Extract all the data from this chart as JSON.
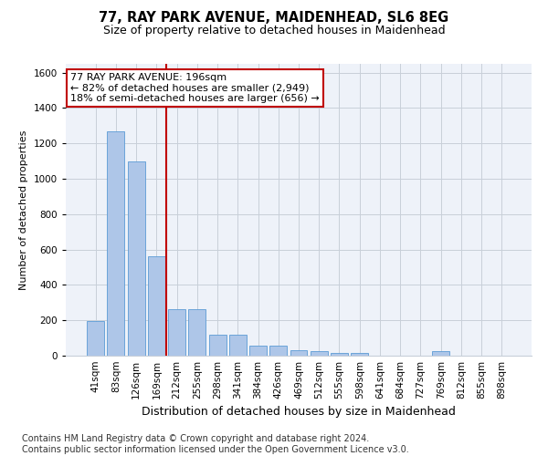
{
  "title": "77, RAY PARK AVENUE, MAIDENHEAD, SL6 8EG",
  "subtitle": "Size of property relative to detached houses in Maidenhead",
  "xlabel": "Distribution of detached houses by size in Maidenhead",
  "ylabel": "Number of detached properties",
  "categories": [
    "41sqm",
    "83sqm",
    "126sqm",
    "169sqm",
    "212sqm",
    "255sqm",
    "298sqm",
    "341sqm",
    "384sqm",
    "426sqm",
    "469sqm",
    "512sqm",
    "555sqm",
    "598sqm",
    "641sqm",
    "684sqm",
    "727sqm",
    "769sqm",
    "812sqm",
    "855sqm",
    "898sqm"
  ],
  "values": [
    197,
    1270,
    1100,
    560,
    265,
    265,
    120,
    120,
    55,
    55,
    30,
    25,
    15,
    15,
    0,
    0,
    0,
    25,
    0,
    0,
    0
  ],
  "bar_color": "#aec6e8",
  "bar_edge_color": "#5b9bd5",
  "vline_color": "#c00000",
  "annotation_line1": "77 RAY PARK AVENUE: 196sqm",
  "annotation_line2": "← 82% of detached houses are smaller (2,949)",
  "annotation_line3": "18% of semi-detached houses are larger (656) →",
  "annotation_box_color": "#ffffff",
  "annotation_box_edge": "#c00000",
  "ylim": [
    0,
    1650
  ],
  "yticks": [
    0,
    200,
    400,
    600,
    800,
    1000,
    1200,
    1400,
    1600
  ],
  "footer_line1": "Contains HM Land Registry data © Crown copyright and database right 2024.",
  "footer_line2": "Contains public sector information licensed under the Open Government Licence v3.0.",
  "bg_color": "#eef2f9",
  "grid_color": "#c8cfd9",
  "title_fontsize": 10.5,
  "subtitle_fontsize": 9,
  "ylabel_fontsize": 8,
  "xlabel_fontsize": 9,
  "tick_fontsize": 7.5,
  "footer_fontsize": 7,
  "annotation_fontsize": 8
}
